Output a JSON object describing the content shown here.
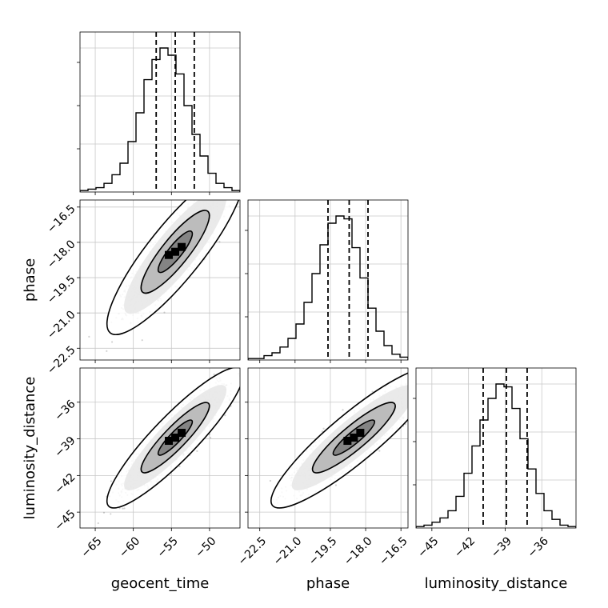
{
  "chart_data": {
    "type": "corner",
    "parameters": [
      "geocent_time",
      "phase",
      "luminosity_distance"
    ],
    "ranges": {
      "geocent_time": [
        -67,
        -46
      ],
      "phase": [
        -23,
        -16.2
      ],
      "luminosity_distance": [
        -46.3,
        -33.2
      ]
    },
    "ticks": {
      "geocent_time": [
        -65,
        -60,
        -55,
        -50
      ],
      "phase": [
        -22.5,
        -21.0,
        -19.5,
        -18.0,
        -16.5
      ],
      "luminosity_distance": [
        -45,
        -42,
        -39,
        -36
      ]
    },
    "tick_labels": {
      "geocent_time": [
        "−65",
        "−60",
        "−55",
        "−50"
      ],
      "phase": [
        "−22.5",
        "−21.0",
        "−19.5",
        "−18.0",
        "−16.5"
      ],
      "luminosity_distance": [
        "−45",
        "−42",
        "−39",
        "−36"
      ]
    },
    "quantile_lines": {
      "geocent_time": [
        -57.0,
        -54.5,
        -52.0
      ],
      "phase": [
        -19.6,
        -18.7,
        -17.9
      ],
      "luminosity_distance": [
        -40.8,
        -38.9,
        -37.2
      ]
    },
    "histograms": {
      "geocent_time": [
        0.01,
        0.02,
        0.03,
        0.06,
        0.12,
        0.2,
        0.35,
        0.55,
        0.78,
        0.92,
        1.0,
        0.95,
        0.82,
        0.6,
        0.4,
        0.25,
        0.13,
        0.06,
        0.03,
        0.01
      ],
      "phase": [
        0.01,
        0.01,
        0.03,
        0.05,
        0.09,
        0.15,
        0.25,
        0.4,
        0.6,
        0.8,
        0.95,
        1.0,
        0.98,
        0.78,
        0.57,
        0.36,
        0.2,
        0.1,
        0.04,
        0.02
      ],
      "luminosity_distance": [
        0.01,
        0.02,
        0.04,
        0.07,
        0.12,
        0.22,
        0.38,
        0.57,
        0.75,
        0.9,
        1.0,
        0.98,
        0.83,
        0.62,
        0.41,
        0.24,
        0.12,
        0.06,
        0.02,
        0.01
      ]
    },
    "pairs": [
      {
        "x": "geocent_time",
        "y": "phase",
        "mean": [
          -54.5,
          -18.4
        ],
        "sd": [
          2.8,
          1.1
        ],
        "rho": 0.87
      },
      {
        "x": "geocent_time",
        "y": "luminosity_distance",
        "mean": [
          -54.5,
          -38.9
        ],
        "sd": [
          2.8,
          1.8
        ],
        "rho": 0.9
      },
      {
        "x": "phase",
        "y": "luminosity_distance",
        "mean": [
          -18.5,
          -38.9
        ],
        "sd": [
          1.1,
          1.8
        ],
        "rho": 0.9
      }
    ],
    "contour_levels_sigma": [
      0.5,
      1.0,
      1.5,
      2.0
    ],
    "grid": true,
    "xlabel_bottom": [
      "geocent_time",
      "phase",
      "luminosity_distance"
    ],
    "ylabel_left": [
      "phase",
      "luminosity_distance"
    ]
  }
}
